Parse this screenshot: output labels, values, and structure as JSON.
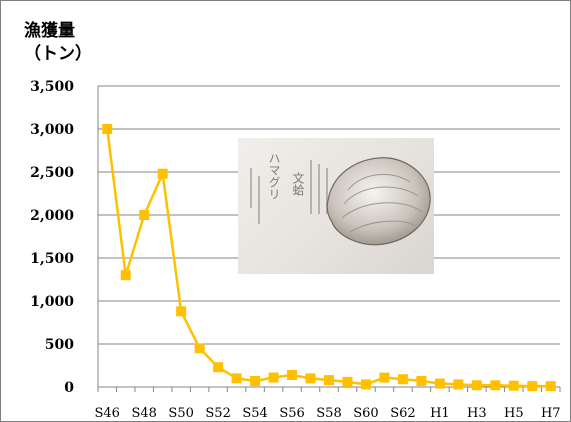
{
  "chart_data": {
    "type": "line",
    "ylabel": "漁獲量（トン）",
    "ylabel_lines": [
      "漁獲量",
      "（トン）"
    ],
    "ylim": [
      0,
      3500
    ],
    "yticks": [
      0,
      500,
      1000,
      1500,
      2000,
      2500,
      3000,
      3500
    ],
    "ytick_labels": [
      "0",
      "500",
      "1,000",
      "1,500",
      "2,000",
      "2,500",
      "3,000",
      "3,500"
    ],
    "x": [
      "S46",
      "S47",
      "S48",
      "S49",
      "S50",
      "S51",
      "S52",
      "S53",
      "S54",
      "S55",
      "S56",
      "S57",
      "S58",
      "S59",
      "S60",
      "S61",
      "S62",
      "S63",
      "H1",
      "H2",
      "H3",
      "H4",
      "H5",
      "H6",
      "H7"
    ],
    "xtick_labels": [
      "S46",
      "S48",
      "S50",
      "S52",
      "S54",
      "S56",
      "S58",
      "S60",
      "S62",
      "H1",
      "H3",
      "H5",
      "H7"
    ],
    "values": [
      3000,
      1300,
      2000,
      2480,
      880,
      450,
      230,
      100,
      70,
      110,
      140,
      100,
      80,
      60,
      30,
      110,
      90,
      70,
      40,
      30,
      20,
      20,
      15,
      10,
      10
    ],
    "grid": true,
    "legend": "none",
    "series_color": "#ffc000"
  },
  "image_text": {
    "label1": "ハマグリ",
    "label2": "文蛤"
  }
}
